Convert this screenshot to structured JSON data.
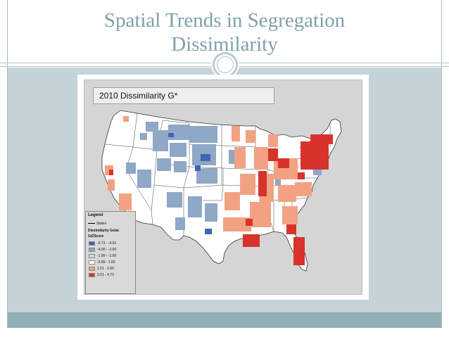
{
  "slide": {
    "title_line1": "Spatial Trends in Segregation",
    "title_line2": "Dissimilarity"
  },
  "map": {
    "title": "2010 Dissimilarity G*",
    "legend": {
      "title": "Legend",
      "states_label": "States",
      "layer_label": "Dissimilarity Gstar",
      "field_label": "GiZScore",
      "classes": [
        {
          "label": "-6.73 - -4.01",
          "color": "#3c67b1"
        },
        {
          "label": "-4.00 - -2.00",
          "color": "#8ea8c6"
        },
        {
          "label": "-1.99 - -1.00",
          "color": "#ced8e4"
        },
        {
          "label": "-0.99 - 1.00",
          "color": "#ffffff"
        },
        {
          "label": "1.01 - 2.00",
          "color": "#f2a283"
        },
        {
          "label": "2.01 - 4.73",
          "color": "#d7332b"
        }
      ]
    }
  },
  "colors": {
    "title_text": "#7ea0ab",
    "content_bg": "#c5d2d7",
    "footer_bar": "#8fb0b3",
    "cold_strong": "#3c67b1",
    "cold": "#8ea8c6",
    "hot": "#f2a283",
    "hot_strong": "#d7332b"
  }
}
